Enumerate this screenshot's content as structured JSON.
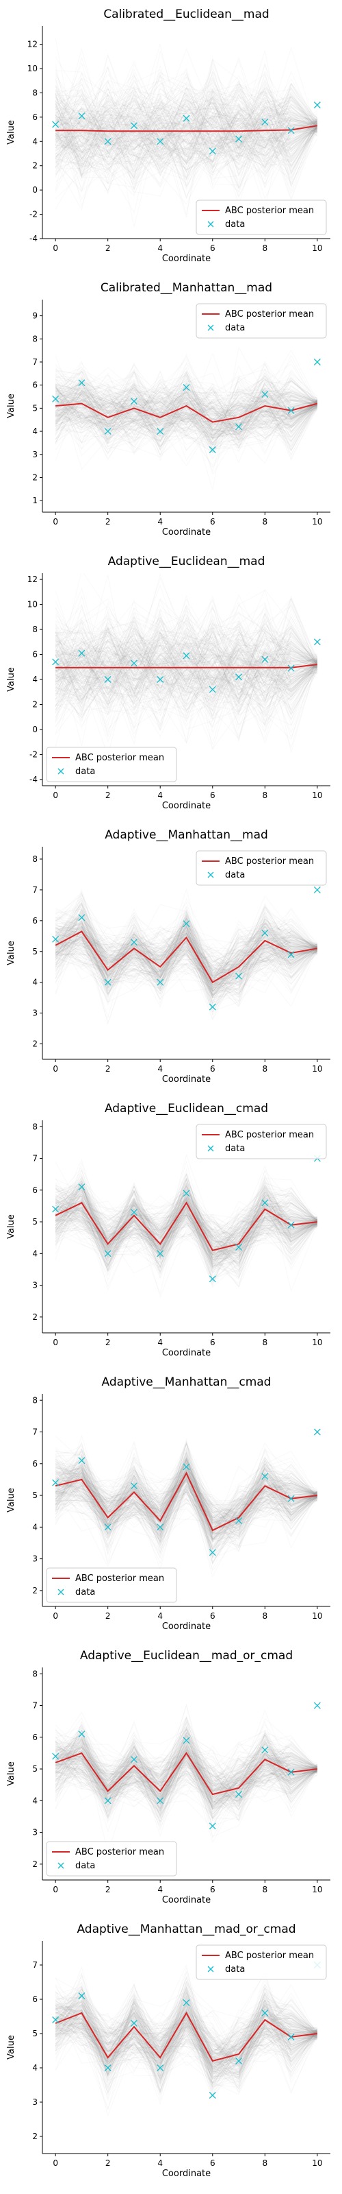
{
  "chart_data": [
    {
      "type": "line",
      "title": "Calibrated__Euclidean__mad",
      "xlabel": "Coordinate",
      "ylabel": "Value",
      "x": [
        0,
        1,
        2,
        3,
        4,
        5,
        6,
        7,
        8,
        9,
        10
      ],
      "xticks": [
        0,
        2,
        4,
        6,
        8,
        10
      ],
      "xlim": [
        -0.5,
        10.5
      ],
      "ylim": [
        -4,
        13.5
      ],
      "yticks": [
        -4,
        -2,
        0,
        2,
        4,
        6,
        8,
        10,
        12
      ],
      "legend_position": "lower-right",
      "posterior_spread": 4.5,
      "series": [
        {
          "name": "ABC posterior mean",
          "kind": "line",
          "color": "#d62728",
          "values": [
            4.9,
            4.9,
            4.85,
            4.85,
            4.85,
            4.85,
            4.85,
            4.85,
            4.9,
            4.95,
            5.3
          ]
        },
        {
          "name": "data",
          "kind": "marker",
          "color": "#17becf",
          "values": [
            5.4,
            6.1,
            4.0,
            5.3,
            4.0,
            5.9,
            3.2,
            4.2,
            5.6,
            4.9,
            7.0
          ]
        }
      ]
    },
    {
      "type": "line",
      "title": "Calibrated__Manhattan__mad",
      "xlabel": "Coordinate",
      "ylabel": "Value",
      "x": [
        0,
        1,
        2,
        3,
        4,
        5,
        6,
        7,
        8,
        9,
        10
      ],
      "xticks": [
        0,
        2,
        4,
        6,
        8,
        10
      ],
      "xlim": [
        -0.5,
        10.5
      ],
      "ylim": [
        0.5,
        9.7
      ],
      "yticks": [
        1,
        2,
        3,
        4,
        5,
        6,
        7,
        8,
        9
      ],
      "legend_position": "upper-right",
      "posterior_spread": 1.6,
      "series": [
        {
          "name": "ABC posterior mean",
          "kind": "line",
          "color": "#d62728",
          "values": [
            5.1,
            5.2,
            4.6,
            5.0,
            4.6,
            5.1,
            4.4,
            4.6,
            5.1,
            4.9,
            5.2
          ]
        },
        {
          "name": "data",
          "kind": "marker",
          "color": "#17becf",
          "values": [
            5.4,
            6.1,
            4.0,
            5.3,
            4.0,
            5.9,
            3.2,
            4.2,
            5.6,
            4.9,
            7.0
          ]
        }
      ]
    },
    {
      "type": "line",
      "title": "Adaptive__Euclidean__mad",
      "xlabel": "Coordinate",
      "ylabel": "Value",
      "x": [
        0,
        1,
        2,
        3,
        4,
        5,
        6,
        7,
        8,
        9,
        10
      ],
      "xticks": [
        0,
        2,
        4,
        6,
        8,
        10
      ],
      "xlim": [
        -0.5,
        10.5
      ],
      "ylim": [
        -4.5,
        12.5
      ],
      "yticks": [
        -4,
        -2,
        0,
        2,
        4,
        6,
        8,
        10,
        12
      ],
      "legend_position": "lower-left",
      "posterior_spread": 4.5,
      "series": [
        {
          "name": "ABC posterior mean",
          "kind": "line",
          "color": "#d62728",
          "values": [
            4.95,
            4.95,
            4.95,
            4.95,
            4.95,
            4.95,
            4.95,
            4.95,
            4.95,
            4.95,
            5.2
          ]
        },
        {
          "name": "data",
          "kind": "marker",
          "color": "#17becf",
          "values": [
            5.4,
            6.1,
            4.0,
            5.3,
            4.0,
            5.9,
            3.2,
            4.2,
            5.6,
            4.9,
            7.0
          ]
        }
      ]
    },
    {
      "type": "line",
      "title": "Adaptive__Manhattan__mad",
      "xlabel": "Coordinate",
      "ylabel": "Value",
      "x": [
        0,
        1,
        2,
        3,
        4,
        5,
        6,
        7,
        8,
        9,
        10
      ],
      "xticks": [
        0,
        2,
        4,
        6,
        8,
        10
      ],
      "xlim": [
        -0.5,
        10.5
      ],
      "ylim": [
        1.5,
        8.4
      ],
      "yticks": [
        2,
        3,
        4,
        5,
        6,
        7,
        8
      ],
      "legend_position": "upper-right",
      "posterior_spread": 1.1,
      "series": [
        {
          "name": "ABC posterior mean",
          "kind": "line",
          "color": "#d62728",
          "values": [
            5.2,
            5.65,
            4.4,
            5.1,
            4.5,
            5.45,
            4.0,
            4.5,
            5.35,
            4.95,
            5.1
          ]
        },
        {
          "name": "data",
          "kind": "marker",
          "color": "#17becf",
          "values": [
            5.4,
            6.1,
            4.0,
            5.3,
            4.0,
            5.9,
            3.2,
            4.2,
            5.6,
            4.9,
            7.0
          ]
        }
      ]
    },
    {
      "type": "line",
      "title": "Adaptive__Euclidean__cmad",
      "xlabel": "Coordinate",
      "ylabel": "Value",
      "x": [
        0,
        1,
        2,
        3,
        4,
        5,
        6,
        7,
        8,
        9,
        10
      ],
      "xticks": [
        0,
        2,
        4,
        6,
        8,
        10
      ],
      "xlim": [
        -0.5,
        10.5
      ],
      "ylim": [
        1.5,
        8.2
      ],
      "yticks": [
        2,
        3,
        4,
        5,
        6,
        7,
        8
      ],
      "legend_position": "upper-right",
      "posterior_spread": 1.0,
      "series": [
        {
          "name": "ABC posterior mean",
          "kind": "line",
          "color": "#d62728",
          "values": [
            5.2,
            5.6,
            4.3,
            5.2,
            4.3,
            5.6,
            4.1,
            4.3,
            5.4,
            4.9,
            5.0
          ]
        },
        {
          "name": "data",
          "kind": "marker",
          "color": "#17becf",
          "values": [
            5.4,
            6.1,
            4.0,
            5.3,
            4.0,
            5.9,
            3.2,
            4.2,
            5.6,
            4.9,
            7.0
          ]
        }
      ]
    },
    {
      "type": "line",
      "title": "Adaptive__Manhattan__cmad",
      "xlabel": "Coordinate",
      "ylabel": "Value",
      "x": [
        0,
        1,
        2,
        3,
        4,
        5,
        6,
        7,
        8,
        9,
        10
      ],
      "xticks": [
        0,
        2,
        4,
        6,
        8,
        10
      ],
      "xlim": [
        -0.5,
        10.5
      ],
      "ylim": [
        1.5,
        8.2
      ],
      "yticks": [
        2,
        3,
        4,
        5,
        6,
        7,
        8
      ],
      "legend_position": "lower-left",
      "posterior_spread": 1.0,
      "series": [
        {
          "name": "ABC posterior mean",
          "kind": "line",
          "color": "#d62728",
          "values": [
            5.3,
            5.5,
            4.3,
            5.1,
            4.2,
            5.7,
            3.9,
            4.3,
            5.3,
            4.9,
            5.0
          ]
        },
        {
          "name": "data",
          "kind": "marker",
          "color": "#17becf",
          "values": [
            5.4,
            6.1,
            4.0,
            5.3,
            4.0,
            5.9,
            3.2,
            4.2,
            5.6,
            4.9,
            7.0
          ]
        }
      ]
    },
    {
      "type": "line",
      "title": "Adaptive__Euclidean__mad_or_cmad",
      "xlabel": "Coordinate",
      "ylabel": "Value",
      "x": [
        0,
        1,
        2,
        3,
        4,
        5,
        6,
        7,
        8,
        9,
        10
      ],
      "xticks": [
        0,
        2,
        4,
        6,
        8,
        10
      ],
      "xlim": [
        -0.5,
        10.5
      ],
      "ylim": [
        1.5,
        8.2
      ],
      "yticks": [
        2,
        3,
        4,
        5,
        6,
        7,
        8
      ],
      "legend_position": "lower-left",
      "posterior_spread": 1.0,
      "series": [
        {
          "name": "ABC posterior mean",
          "kind": "line",
          "color": "#d62728",
          "values": [
            5.2,
            5.5,
            4.3,
            5.1,
            4.3,
            5.5,
            4.2,
            4.4,
            5.3,
            4.9,
            5.0
          ]
        },
        {
          "name": "data",
          "kind": "marker",
          "color": "#17becf",
          "values": [
            5.4,
            6.1,
            4.0,
            5.3,
            4.0,
            5.9,
            3.2,
            4.2,
            5.6,
            4.9,
            7.0
          ]
        }
      ]
    },
    {
      "type": "line",
      "title": "Adaptive__Manhattan__mad_or_cmad",
      "xlabel": "Coordinate",
      "ylabel": "Value",
      "x": [
        0,
        1,
        2,
        3,
        4,
        5,
        6,
        7,
        8,
        9,
        10
      ],
      "xticks": [
        0,
        2,
        4,
        6,
        8,
        10
      ],
      "xlim": [
        -0.5,
        10.5
      ],
      "ylim": [
        1.5,
        7.7
      ],
      "yticks": [
        2,
        3,
        4,
        5,
        6,
        7
      ],
      "legend_position": "upper-right",
      "posterior_spread": 1.0,
      "series": [
        {
          "name": "ABC posterior mean",
          "kind": "line",
          "color": "#d62728",
          "values": [
            5.3,
            5.6,
            4.3,
            5.2,
            4.3,
            5.6,
            4.2,
            4.4,
            5.4,
            4.9,
            5.0
          ]
        },
        {
          "name": "data",
          "kind": "marker",
          "color": "#17becf",
          "values": [
            5.4,
            6.1,
            4.0,
            5.3,
            4.0,
            5.9,
            3.2,
            4.2,
            5.6,
            4.9,
            7.0
          ]
        }
      ]
    }
  ]
}
